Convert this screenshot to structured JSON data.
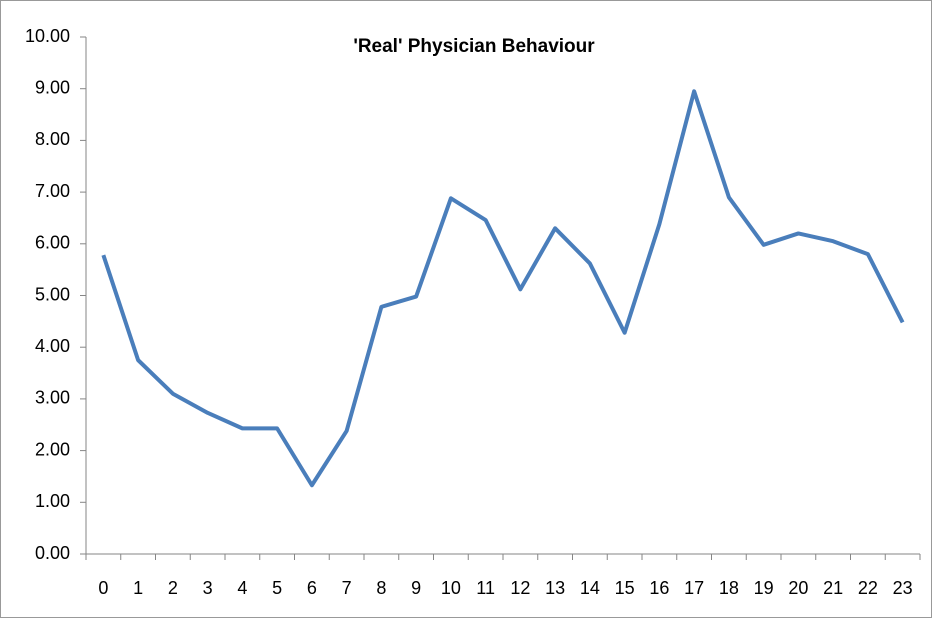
{
  "chart_data": {
    "type": "line",
    "title": "'Real' Physician Behaviour",
    "categories": [
      "0",
      "1",
      "2",
      "3",
      "4",
      "5",
      "6",
      "7",
      "8",
      "9",
      "10",
      "11",
      "12",
      "13",
      "14",
      "15",
      "16",
      "17",
      "18",
      "19",
      "20",
      "21",
      "22",
      "23"
    ],
    "series": [
      {
        "color": "#4a7ebb",
        "values": [
          5.78,
          3.75,
          3.1,
          2.73,
          2.43,
          2.43,
          1.33,
          2.38,
          4.78,
          4.98,
          6.88,
          6.46,
          5.12,
          6.3,
          5.62,
          4.28,
          6.38,
          8.95,
          6.9,
          5.98,
          6.2,
          6.05,
          5.8,
          4.48
        ]
      }
    ],
    "ylim": [
      0,
      10
    ],
    "yticks": [
      {
        "value": 0,
        "label": "0.00"
      },
      {
        "value": 1,
        "label": "1.00"
      },
      {
        "value": 2,
        "label": "2.00"
      },
      {
        "value": 3,
        "label": "3.00"
      },
      {
        "value": 4,
        "label": "4.00"
      },
      {
        "value": 5,
        "label": "5.00"
      },
      {
        "value": 6,
        "label": "6.00"
      },
      {
        "value": 7,
        "label": "7.00"
      },
      {
        "value": 8,
        "label": "8.00"
      },
      {
        "value": 9,
        "label": "9.00"
      },
      {
        "value": 10,
        "label": "10.00"
      }
    ],
    "grid": false
  }
}
